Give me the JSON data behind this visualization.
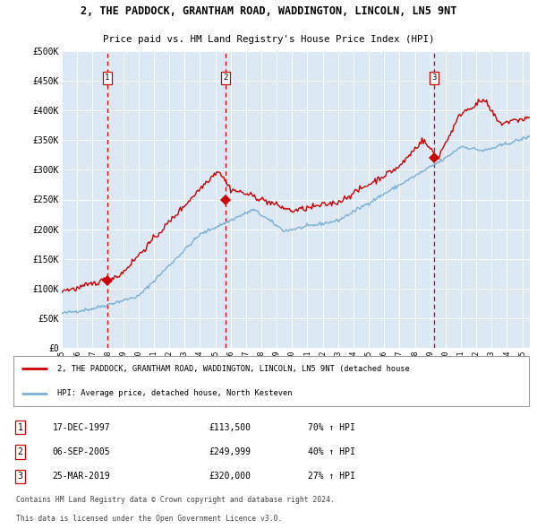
{
  "title_line1": "2, THE PADDOCK, GRANTHAM ROAD, WADDINGTON, LINCOLN, LN5 9NT",
  "title_line2": "Price paid vs. HM Land Registry's House Price Index (HPI)",
  "bg_color": "#dce9f5",
  "red_line_color": "#cc0000",
  "blue_line_color": "#7ab0d4",
  "sale_marker_color": "#cc0000",
  "vline_color": "#dd0000",
  "grid_color": "#ffffff",
  "ylim": [
    0,
    500000
  ],
  "yticks": [
    0,
    50000,
    100000,
    150000,
    200000,
    250000,
    300000,
    350000,
    400000,
    450000,
    500000
  ],
  "ytick_labels": [
    "£0",
    "£50K",
    "£100K",
    "£150K",
    "£200K",
    "£250K",
    "£300K",
    "£350K",
    "£400K",
    "£450K",
    "£500K"
  ],
  "sale1_year": 1997.96,
  "sale1_price": 113500,
  "sale2_year": 2005.68,
  "sale2_price": 249999,
  "sale3_year": 2019.23,
  "sale3_price": 320000,
  "legend_line1": "2, THE PADDOCK, GRANTHAM ROAD, WADDINGTON, LINCOLN, LN5 9NT (detached house",
  "legend_line2": "HPI: Average price, detached house, North Kesteven",
  "table_rows": [
    {
      "num": "1",
      "date": "17-DEC-1997",
      "price": "£113,500",
      "hpi": "70% ↑ HPI"
    },
    {
      "num": "2",
      "date": "06-SEP-2005",
      "price": "£249,999",
      "hpi": "40% ↑ HPI"
    },
    {
      "num": "3",
      "date": "25-MAR-2019",
      "price": "£320,000",
      "hpi": "27% ↑ HPI"
    }
  ],
  "footer1": "Contains HM Land Registry data © Crown copyright and database right 2024.",
  "footer2": "This data is licensed under the Open Government Licence v3.0."
}
